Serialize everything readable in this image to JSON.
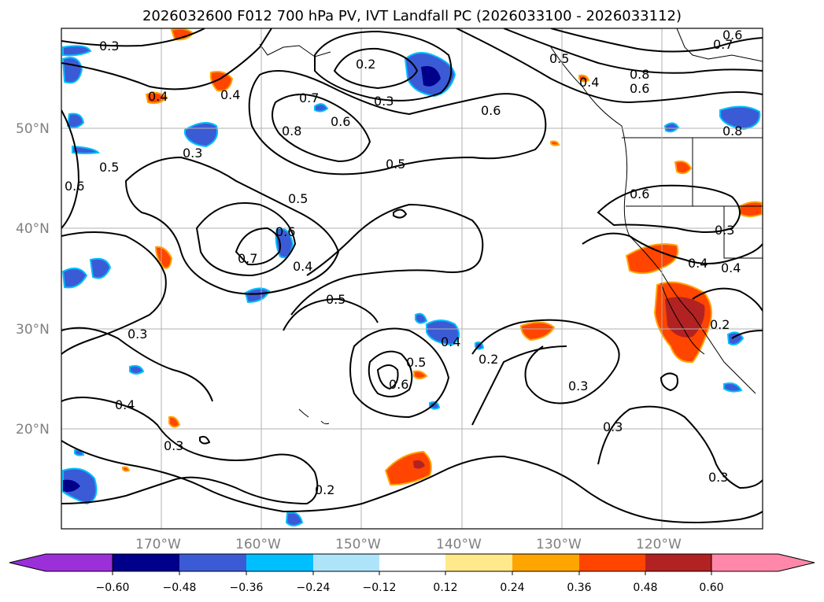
{
  "title": "2026032600 F012 700 hPa PV, IVT Landfall PC (2026033100 - 2026033112)",
  "map": {
    "lat_ticks": [
      "20°N",
      "30°N",
      "40°N",
      "50°N"
    ],
    "lon_ticks": [
      "170°W",
      "160°W",
      "150°W",
      "140°W",
      "130°W",
      "120°W"
    ],
    "grid": true
  },
  "colorbar": {
    "ticks": [
      "−0.60",
      "−0.48",
      "−0.36",
      "−0.24",
      "−0.12",
      "0.12",
      "0.24",
      "0.36",
      "0.48",
      "0.60"
    ],
    "colors": [
      "#9b30d9",
      "#00008b",
      "#3b5bd6",
      "#00bfff",
      "#aee4fa",
      "#ffffff",
      "#ffe98a",
      "#ffa500",
      "#ff4500",
      "#b22222",
      "#ff88aa"
    ],
    "extend": "both"
  },
  "contour_labels": [
    "0.3",
    "0.2",
    "0.3",
    "0.6",
    "0.5",
    "0.4",
    "0.8",
    "0.6",
    "0.7",
    "0.6",
    "0.4",
    "0.7",
    "0.8",
    "0.6",
    "0.8",
    "0.4",
    "0.5",
    "0.6",
    "0.5",
    "0.5",
    "0.6",
    "0.7",
    "0.4",
    "0.5",
    "0.3",
    "0.4",
    "0.3",
    "0.6",
    "0.5",
    "0.2",
    "0.3",
    "0.3",
    "0.2",
    "0.3",
    "0.4",
    "0.3",
    "0.6",
    "0.4",
    "0.3",
    "0.4",
    "0.2"
  ]
}
